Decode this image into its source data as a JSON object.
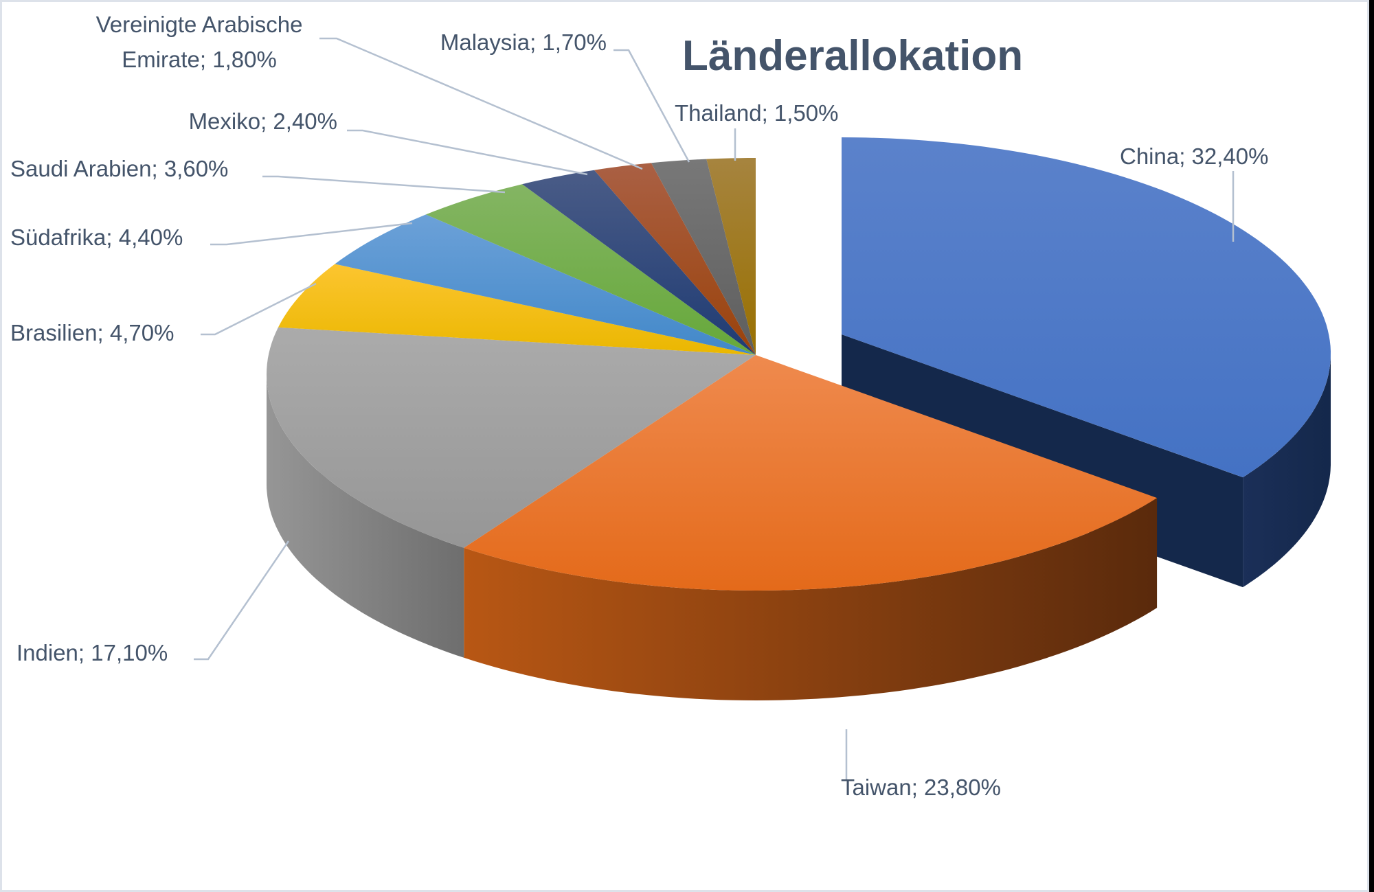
{
  "chart_data": {
    "type": "pie",
    "variant": "3d-pie-exploded",
    "title": "Länderallokation",
    "categories": [
      "China",
      "Taiwan",
      "Indien",
      "Brasilien",
      "Südafrika",
      "Saudi Arabien",
      "Mexiko",
      "Vereinigte Arabische Emirate",
      "Malaysia",
      "Thailand"
    ],
    "values": [
      32.4,
      23.8,
      17.1,
      4.7,
      4.4,
      3.6,
      2.4,
      1.8,
      1.7,
      1.5
    ],
    "unit": "%",
    "exploded": [
      "China"
    ],
    "legend": "none (data labels with leader lines)"
  },
  "title": "Länderallokation",
  "slices": [
    {
      "name": "China",
      "value": 32.4,
      "label": "China; 32,40%",
      "top": "#4472c4",
      "top_light": "#5b82cb",
      "side": "#14284b",
      "side_light": "#1b2f58"
    },
    {
      "name": "Taiwan",
      "value": 23.8,
      "label": "Taiwan; 23,80%",
      "top": "#e46a1a",
      "top_light": "#ef8a4e",
      "side": "#5a2a0c",
      "side_light": "#b85714"
    },
    {
      "name": "Indien",
      "value": 17.1,
      "label": "Indien; 17,10%",
      "top": "#969696",
      "top_light": "#ababab",
      "side": "#6e6e6e",
      "side_light": "#969696"
    },
    {
      "name": "Brasilien",
      "value": 4.7,
      "label": "Brasilien; 4,70%",
      "top": "#eab700",
      "top_light": "#fcc530",
      "side": "#8a6b00",
      "side_light": "#b88f00"
    },
    {
      "name": "Südafrika",
      "value": 4.4,
      "label": "Südafrika; 4,40%",
      "top": "#4288c9",
      "top_light": "#6ca1d8",
      "side": "#285a8a",
      "side_light": "#3b78b0"
    },
    {
      "name": "Saudi Arabien",
      "value": 3.6,
      "label": "Saudi Arabien; 3,60%",
      "top": "#66a83a",
      "top_light": "#84b563",
      "side": "#3d6a22",
      "side_light": "#55902f"
    },
    {
      "name": "Mexiko",
      "value": 2.4,
      "label": "Mexiko; 2,40%",
      "top": "#1f3b73",
      "top_light": "#4a5c87",
      "side": "#142647",
      "side_light": "#1f3b73"
    },
    {
      "name": "Vereinigte Arabische Emirate",
      "value": 1.8,
      "label_line1": "Vereinigte Arabische",
      "label_line2": "Emirate; 1,80%",
      "top": "#9a420a",
      "top_light": "#aa6044",
      "side": "#5f2a07",
      "side_light": "#8a3d0a"
    },
    {
      "name": "Malaysia",
      "value": 1.7,
      "label": "Malaysia; 1,70%",
      "top": "#5e5e5e",
      "top_light": "#787878",
      "side": "#444444",
      "side_light": "#5e5e5e"
    },
    {
      "name": "Thailand",
      "value": 1.5,
      "label": "Thailand; 1,50%",
      "top": "#997000",
      "top_light": "#a6843f",
      "side": "#6a4e00",
      "side_light": "#8a6600"
    }
  ],
  "colors": {
    "label_text": "#44546a",
    "leader_line": "#b4c0d0",
    "frame_border": "#dde2ea",
    "background": "#ffffff"
  }
}
